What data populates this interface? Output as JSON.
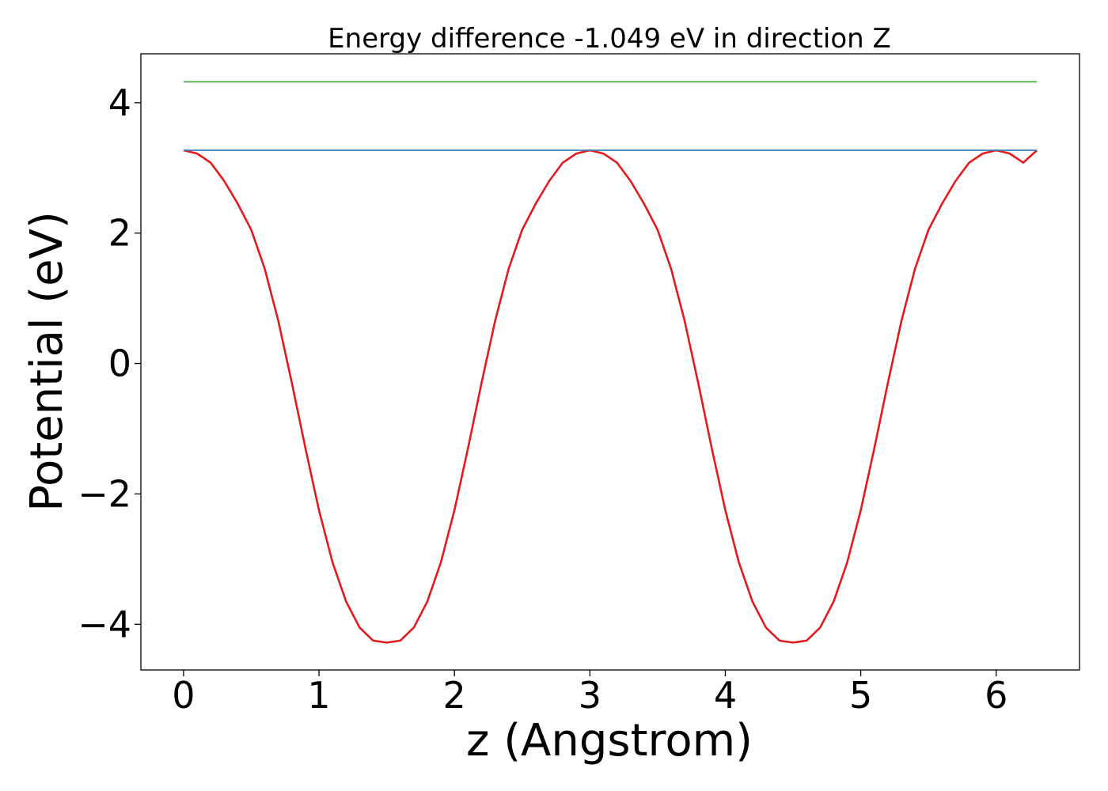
{
  "chart_data": {
    "type": "line",
    "title": "Energy difference -1.049 eV in direction Z",
    "xlabel": "z (Angstrom)",
    "ylabel": "Potential (eV)",
    "xlim": [
      -0.315,
      6.615
    ],
    "ylim": [
      -4.7,
      4.75
    ],
    "grid": false,
    "legend": "none",
    "x_ticks": [
      {
        "value": 0,
        "label": "0"
      },
      {
        "value": 1,
        "label": "1"
      },
      {
        "value": 2,
        "label": "2"
      },
      {
        "value": 3,
        "label": "3"
      },
      {
        "value": 4,
        "label": "4"
      },
      {
        "value": 5,
        "label": "5"
      },
      {
        "value": 6,
        "label": "6"
      }
    ],
    "y_ticks": [
      {
        "value": -4,
        "label": "−4"
      },
      {
        "value": -2,
        "label": "−2"
      },
      {
        "value": 0,
        "label": "0"
      },
      {
        "value": 2,
        "label": "2"
      },
      {
        "value": 4,
        "label": "4"
      }
    ],
    "series": [
      {
        "color": "#e41a1c",
        "x": [
          0.0,
          0.1,
          0.2,
          0.3,
          0.4,
          0.5,
          0.6,
          0.7,
          0.8,
          0.9,
          1.0,
          1.1,
          1.2,
          1.3,
          1.4,
          1.5,
          1.6,
          1.7,
          1.8,
          1.9,
          2.0,
          2.1,
          2.2,
          2.3,
          2.4,
          2.5,
          2.6,
          2.7,
          2.8,
          2.9,
          3.0,
          3.1,
          3.2,
          3.3,
          3.4,
          3.5,
          3.6,
          3.7,
          3.8,
          3.9,
          4.0,
          4.1,
          4.2,
          4.3,
          4.4,
          4.5,
          4.6,
          4.7,
          4.8,
          4.9,
          5.0,
          5.1,
          5.2,
          5.3,
          5.4,
          5.5,
          5.6,
          5.7,
          5.8,
          5.9,
          6.0,
          6.1,
          6.2,
          6.3
        ],
        "y": [
          3.27,
          3.22,
          3.08,
          2.8,
          2.45,
          2.05,
          1.45,
          0.65,
          -0.3,
          -1.3,
          -2.25,
          -3.05,
          -3.65,
          -4.05,
          -4.25,
          -4.28,
          -4.25,
          -4.05,
          -3.65,
          -3.05,
          -2.25,
          -1.3,
          -0.3,
          0.65,
          1.45,
          2.05,
          2.45,
          2.8,
          3.08,
          3.22,
          3.27,
          3.22,
          3.08,
          2.8,
          2.45,
          2.05,
          1.45,
          0.65,
          -0.3,
          -1.3,
          -2.25,
          -3.05,
          -3.65,
          -4.05,
          -4.25,
          -4.28,
          -4.25,
          -4.05,
          -3.65,
          -3.05,
          -2.25,
          -1.3,
          -0.3,
          0.65,
          1.45,
          2.05,
          2.45,
          2.8,
          3.08,
          3.22,
          3.27,
          3.22,
          3.08,
          3.27
        ]
      },
      {
        "color": "#4daf4a",
        "x": [
          0.0,
          6.3
        ],
        "y": [
          4.32,
          4.32
        ]
      },
      {
        "color": "#377eb8",
        "x": [
          0.0,
          6.3
        ],
        "y": [
          3.27,
          3.27
        ]
      }
    ]
  }
}
